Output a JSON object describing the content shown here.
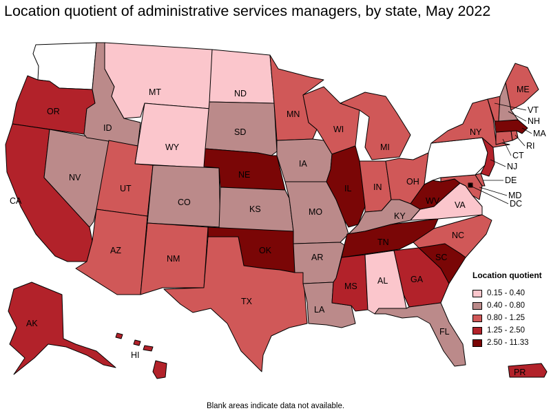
{
  "title": "Location quotient of administrative services managers, by state, May 2022",
  "footnote": "Blank areas indicate data not available.",
  "legend": {
    "title": "Location quotient",
    "items": [
      {
        "label": "0.15 - 0.40",
        "color": "#fbc6cc"
      },
      {
        "label": "0.40 - 0.80",
        "color": "#bb8a8a"
      },
      {
        "label": "0.80 - 1.25",
        "color": "#d05858"
      },
      {
        "label": "1.25 - 2.50",
        "color": "#b2222a"
      },
      {
        "label": "2.50 - 11.33",
        "color": "#7a0606"
      }
    ]
  },
  "no_data_color": "#ffffff",
  "states": {
    "WA": {
      "label": "",
      "class": "nodata"
    },
    "OR": {
      "label": "OR",
      "class": 3
    },
    "CA": {
      "label": "CA",
      "class": 3
    },
    "ID": {
      "label": "ID",
      "class": 1
    },
    "NV": {
      "label": "NV",
      "class": 1
    },
    "MT": {
      "label": "MT",
      "class": 0
    },
    "WY": {
      "label": "WY",
      "class": 0
    },
    "UT": {
      "label": "UT",
      "class": 2
    },
    "AZ": {
      "label": "AZ",
      "class": 2
    },
    "CO": {
      "label": "CO",
      "class": 1
    },
    "NM": {
      "label": "NM",
      "class": 2
    },
    "ND": {
      "label": "ND",
      "class": 0
    },
    "SD": {
      "label": "SD",
      "class": 1
    },
    "NE": {
      "label": "NE",
      "class": 4
    },
    "KS": {
      "label": "KS",
      "class": 1
    },
    "OK": {
      "label": "OK",
      "class": 4
    },
    "TX": {
      "label": "TX",
      "class": 2
    },
    "MN": {
      "label": "MN",
      "class": 2
    },
    "IA": {
      "label": "IA",
      "class": 1
    },
    "MO": {
      "label": "MO",
      "class": 1
    },
    "AR": {
      "label": "AR",
      "class": 1
    },
    "LA": {
      "label": "LA",
      "class": 1
    },
    "WI": {
      "label": "WI",
      "class": 2
    },
    "IL": {
      "label": "IL",
      "class": 4
    },
    "MI": {
      "label": "MI",
      "class": 2
    },
    "IN": {
      "label": "IN",
      "class": 2
    },
    "OH": {
      "label": "OH",
      "class": 2
    },
    "KY": {
      "label": "KY",
      "class": 1
    },
    "TN": {
      "label": "TN",
      "class": 4
    },
    "MS": {
      "label": "MS",
      "class": 3
    },
    "AL": {
      "label": "AL",
      "class": 0
    },
    "GA": {
      "label": "GA",
      "class": 3
    },
    "FL": {
      "label": "FL",
      "class": 1
    },
    "SC": {
      "label": "SC",
      "class": 4
    },
    "NC": {
      "label": "NC",
      "class": 2
    },
    "VA": {
      "label": "VA",
      "class": 0
    },
    "WV": {
      "label": "WV",
      "class": 4
    },
    "PA": {
      "label": "",
      "class": "nodata"
    },
    "NY": {
      "label": "NY",
      "class": 2
    },
    "VT": {
      "label": "VT",
      "class": 2
    },
    "NH": {
      "label": "NH",
      "class": 1
    },
    "ME": {
      "label": "ME",
      "class": 2
    },
    "MA": {
      "label": "MA",
      "class": 4
    },
    "RI": {
      "label": "RI",
      "class": 2
    },
    "CT": {
      "label": "CT",
      "class": 2
    },
    "NJ": {
      "label": "NJ",
      "class": 3
    },
    "DE": {
      "label": "DE",
      "class": 2
    },
    "MD": {
      "label": "MD",
      "class": 2
    },
    "DC": {
      "label": "DC",
      "class": 4
    },
    "AK": {
      "label": "AK",
      "class": 3
    },
    "HI": {
      "label": "HI",
      "class": 3
    },
    "PR": {
      "label": "PR",
      "class": 3
    }
  }
}
